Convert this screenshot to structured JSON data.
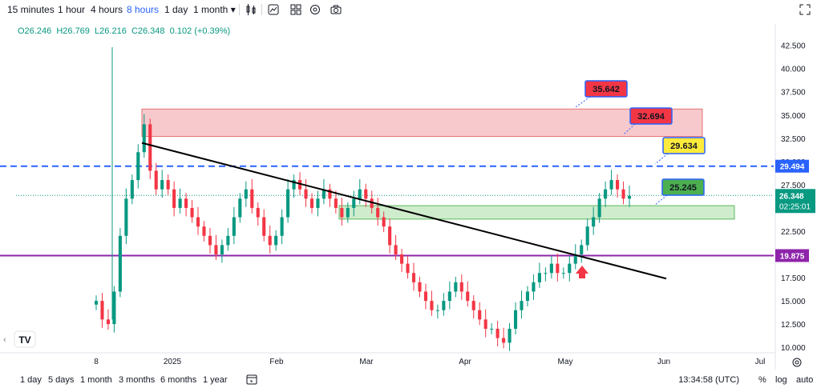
{
  "toolbar": {
    "timeframes": [
      "15 minutes",
      "1 hour",
      "4 hours",
      "8 hours",
      "1 day",
      "1 month"
    ],
    "active_timeframe": "8 hours",
    "icons": [
      "candles-icon",
      "indicators-icon",
      "templates-icon",
      "settings-icon",
      "snapshot-icon",
      "fullscreen-icon"
    ]
  },
  "ohlc": {
    "open": "O26.246",
    "high": "H26.769",
    "low": "L26.216",
    "close": "C26.348",
    "change": "0.102 (+0.39%)"
  },
  "bottombar": {
    "ranges": [
      "1 day",
      "5 days",
      "1 month",
      "3 months",
      "6 months",
      "1 year"
    ],
    "clock": "13:34:58 (UTC)",
    "options": [
      "%",
      "log",
      "auto"
    ]
  },
  "colors": {
    "up": "#089981",
    "down": "#f23645",
    "purple": "#8e24aa",
    "blue_dash": "#2962ff",
    "resistance_fill": "#f8c9cc",
    "support_fill": "#cfeccd"
  },
  "chart_data": {
    "type": "candlestick",
    "y_axis": {
      "ticks": [
        "42.500",
        "40.000",
        "37.500",
        "35.000",
        "32.500",
        "30.000",
        "27.500",
        "25.000",
        "22.500",
        "20.000",
        "17.500",
        "15.000",
        "12.500",
        "10.000"
      ],
      "ylim": [
        9.5,
        43.5
      ]
    },
    "x_axis": {
      "ticks": [
        "8",
        "2025",
        "Feb",
        "Mar",
        "Apr",
        "May",
        "Jun",
        "Jul"
      ]
    },
    "price_line": {
      "label": "26.348",
      "countdown": "02:25:01",
      "value": 26.348
    },
    "horizontal_lines": [
      {
        "value": 29.494,
        "label": "29.494",
        "style": "dashed",
        "color": "#2962ff"
      },
      {
        "value": 19.875,
        "label": "19.875",
        "style": "solid",
        "color": "#8e24aa"
      }
    ],
    "zones": [
      {
        "type": "resistance",
        "from": 32.694,
        "to": 35.642
      },
      {
        "type": "support",
        "from": 23.8,
        "to": 25.245
      }
    ],
    "callouts": [
      {
        "label": "35.642",
        "color": "#f23645"
      },
      {
        "label": "32.694",
        "color": "#f23645"
      },
      {
        "label": "29.634",
        "color": "#ffeb3b"
      },
      {
        "label": "25.245",
        "color": "#4caf50"
      }
    ],
    "trendline": {
      "from": 32.0,
      "to": 17.4
    },
    "series": [
      {
        "values": [
          15,
          13,
          12.5,
          16,
          22,
          26,
          28,
          31,
          34,
          29,
          27,
          28,
          27,
          25,
          26,
          25,
          24,
          23,
          22,
          21,
          20,
          21,
          22,
          24,
          26,
          27,
          25,
          24,
          22,
          21,
          22,
          24,
          27,
          28,
          27,
          26,
          25,
          26,
          27,
          26,
          25,
          24,
          25,
          26,
          27,
          26,
          25,
          24,
          23,
          21,
          20,
          19,
          18,
          17,
          16,
          15,
          14,
          14,
          15,
          16,
          17,
          16,
          15,
          14,
          13,
          12,
          12,
          11,
          10.5,
          12,
          14,
          15,
          16,
          17,
          18,
          18,
          19,
          18,
          18,
          19,
          20,
          21,
          23,
          24,
          26,
          27,
          28,
          27,
          26,
          26.3
        ]
      }
    ]
  }
}
